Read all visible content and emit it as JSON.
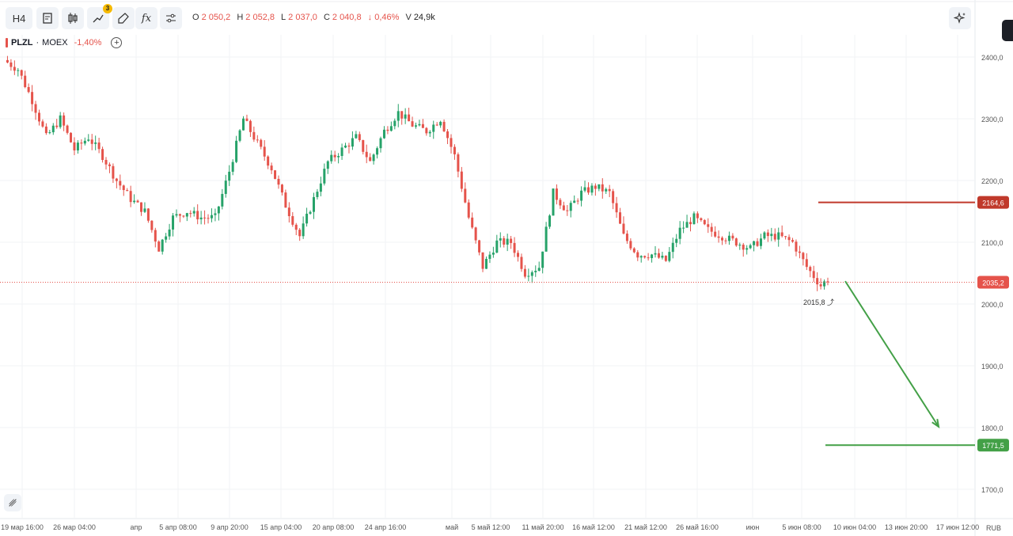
{
  "toolbar": {
    "interval": "H4",
    "indicator_badge": "3",
    "fx_label": "fx",
    "ohlc": {
      "o_label": "O",
      "o": "2 050,2",
      "h_label": "H",
      "h": "2 052,8",
      "l_label": "L",
      "l": "2 037,0",
      "c_label": "C",
      "c": "2 040,8",
      "change": "↓ 0,46%",
      "v_label": "V",
      "volume": "24,9k"
    }
  },
  "legend": {
    "symbol": "PLZL",
    "separator": "·",
    "exchange": "MOEX",
    "change": "-1,40%"
  },
  "colors": {
    "up": "#26a269",
    "down": "#e5534b",
    "resistance": "#c0392b",
    "target": "#43a047"
  },
  "chart_data": {
    "type": "candlestick",
    "y_ticks": [
      "2400,0",
      "2300,0",
      "2200,0",
      "2100,0",
      "2000,0",
      "1900,0",
      "1800,0",
      "1700,0"
    ],
    "y_values": [
      2400,
      2300,
      2200,
      2100,
      2000,
      1900,
      1800,
      1700
    ],
    "ylim": [
      1700,
      2400
    ],
    "currency": "RUB",
    "x_ticks": [
      "19 мар 16:00",
      "26 мар 04:00",
      "апр",
      "5 апр 08:00",
      "9 апр 20:00",
      "15 апр 04:00",
      "20 апр 08:00",
      "24 апр 16:00",
      "май",
      "5 май 12:00",
      "11 май 20:00",
      "16 май 12:00",
      "21 май 12:00",
      "26 май 16:00",
      "июн",
      "5 июн 08:00",
      "10 июн 04:00",
      "13 июн 20:00",
      "17 июн 12:00"
    ],
    "price_path": [
      [
        0,
        2395
      ],
      [
        4,
        2380
      ],
      [
        8,
        2330
      ],
      [
        12,
        2270
      ],
      [
        16,
        2300
      ],
      [
        20,
        2250
      ],
      [
        24,
        2270
      ],
      [
        28,
        2240
      ],
      [
        32,
        2200
      ],
      [
        36,
        2170
      ],
      [
        40,
        2150
      ],
      [
        44,
        2090
      ],
      [
        48,
        2140
      ],
      [
        52,
        2150
      ],
      [
        56,
        2140
      ],
      [
        60,
        2140
      ],
      [
        64,
        2215
      ],
      [
        68,
        2300
      ],
      [
        72,
        2260
      ],
      [
        76,
        2220
      ],
      [
        80,
        2160
      ],
      [
        84,
        2110
      ],
      [
        88,
        2170
      ],
      [
        92,
        2230
      ],
      [
        96,
        2250
      ],
      [
        100,
        2270
      ],
      [
        104,
        2230
      ],
      [
        108,
        2280
      ],
      [
        112,
        2310
      ],
      [
        116,
        2290
      ],
      [
        120,
        2280
      ],
      [
        124,
        2300
      ],
      [
        128,
        2240
      ],
      [
        132,
        2140
      ],
      [
        136,
        2060
      ],
      [
        140,
        2100
      ],
      [
        144,
        2100
      ],
      [
        148,
        2050
      ],
      [
        152,
        2060
      ],
      [
        156,
        2180
      ],
      [
        160,
        2150
      ],
      [
        164,
        2180
      ],
      [
        168,
        2190
      ],
      [
        172,
        2180
      ],
      [
        176,
        2110
      ],
      [
        180,
        2080
      ],
      [
        184,
        2080
      ],
      [
        188,
        2070
      ],
      [
        192,
        2120
      ],
      [
        196,
        2140
      ],
      [
        200,
        2120
      ],
      [
        204,
        2110
      ],
      [
        208,
        2100
      ],
      [
        212,
        2090
      ],
      [
        216,
        2110
      ],
      [
        220,
        2110
      ],
      [
        224,
        2100
      ],
      [
        228,
        2060
      ],
      [
        232,
        2030
      ],
      [
        234,
        2040
      ]
    ],
    "last_price": 2035.2,
    "last_price_label": "2035,2",
    "low_marker": "2015,8",
    "resistance": 2164.6,
    "resistance_label": "2164,6",
    "target": 1771.5,
    "target_label": "1771,5",
    "arrow_from": 2037,
    "arrow_to": 1800
  }
}
